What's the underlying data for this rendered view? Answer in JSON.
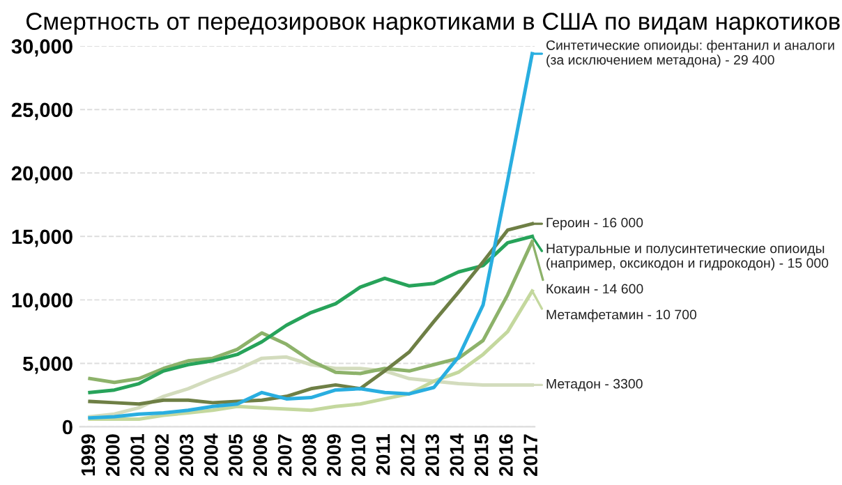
{
  "chart_data": {
    "type": "line",
    "title": "Смертность от передозировок наркотиками в США по видам наркотиков",
    "categories": [
      "1999",
      "2000",
      "2001",
      "2002",
      "2003",
      "2004",
      "2005",
      "2006",
      "2007",
      "2008",
      "2009",
      "2010",
      "2011",
      "2012",
      "2013",
      "2014",
      "2015",
      "2016",
      "2017"
    ],
    "series": [
      {
        "name": "Синтетические опиоиды: фентанил и аналоги\n(за исключением метадона) - 29 400",
        "color": "#29aee0",
        "values": [
          700,
          800,
          1000,
          1100,
          1300,
          1600,
          1800,
          2700,
          2200,
          2300,
          2900,
          3000,
          2700,
          2600,
          3100,
          5500,
          9600,
          19400,
          29400
        ]
      },
      {
        "name": "Героин - 16 000",
        "color": "#6e7f45",
        "values": [
          2000,
          1900,
          1800,
          2100,
          2100,
          1900,
          2000,
          2100,
          2400,
          3000,
          3300,
          3000,
          4400,
          5900,
          8300,
          10600,
          13000,
          15500,
          16000
        ]
      },
      {
        "name": "Натуральные и полусинтетические опиоиды\n(например, оксикодон и гидрокодон) - 15 000",
        "color": "#27a35a",
        "values": [
          2700,
          2900,
          3400,
          4400,
          4900,
          5200,
          5700,
          6700,
          8000,
          9000,
          9700,
          11000,
          11700,
          11100,
          11300,
          12200,
          12700,
          14500,
          15000
        ]
      },
      {
        "name": "Кокаин - 14 600",
        "color": "#8db26a",
        "values": [
          3800,
          3500,
          3800,
          4600,
          5200,
          5400,
          6100,
          7400,
          6500,
          5200,
          4300,
          4200,
          4600,
          4400,
          4900,
          5400,
          6800,
          10400,
          14600
        ]
      },
      {
        "name": "Метамфетамин - 10 700",
        "color": "#c4d89e",
        "values": [
          600,
          600,
          600,
          900,
          1100,
          1300,
          1600,
          1500,
          1400,
          1300,
          1600,
          1800,
          2200,
          2600,
          3600,
          4300,
          5700,
          7500,
          10700
        ]
      },
      {
        "name": "Метадон - 3300",
        "color": "#d3dcbd",
        "values": [
          800,
          1000,
          1500,
          2400,
          3000,
          3800,
          4500,
          5400,
          5500,
          4900,
          4600,
          4600,
          4400,
          3800,
          3600,
          3400,
          3300,
          3300,
          3300
        ]
      }
    ],
    "ylim": [
      0,
      30000
    ],
    "yticks": [
      {
        "value": 0,
        "label": "0"
      },
      {
        "value": 5000,
        "label": "5,000"
      },
      {
        "value": 10000,
        "label": "10,000"
      },
      {
        "value": 15000,
        "label": "15,000"
      },
      {
        "value": 20000,
        "label": "20,000"
      },
      {
        "value": 25000,
        "label": "25,000"
      },
      {
        "value": 30000,
        "label": "30,000"
      }
    ],
    "grid": "y",
    "legend": "right",
    "marker": "none",
    "line_style": "solid"
  }
}
